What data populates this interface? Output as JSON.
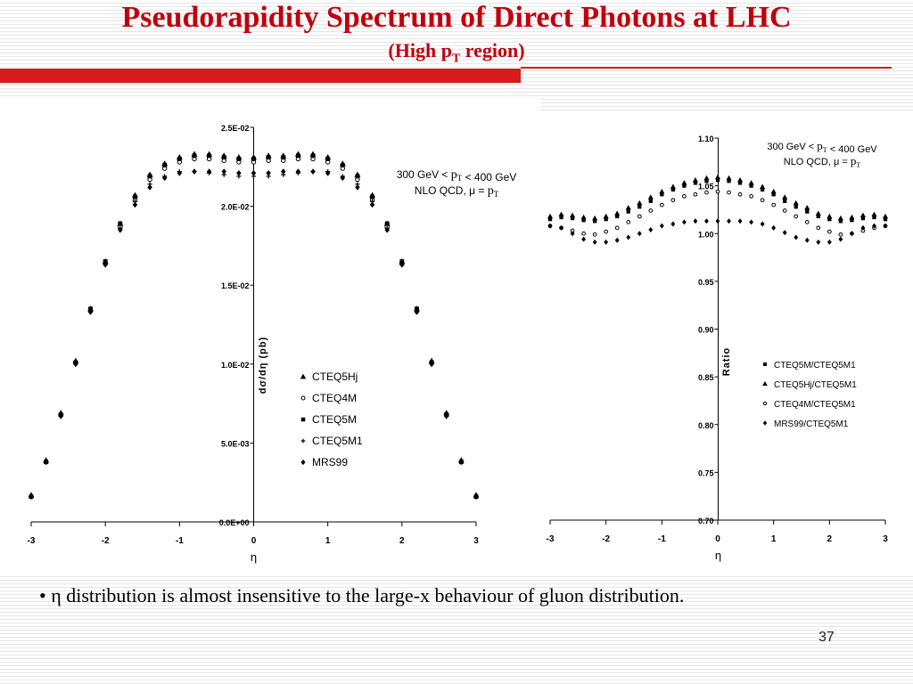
{
  "slide": {
    "title": "Pseudorapidity Spectrum of Direct Photons at LHC",
    "subtitle_prefix": "(High p",
    "subtitle_sub": "T",
    "subtitle_suffix": " region)",
    "bullet_mark": "•",
    "bullet_text": "η distribution is almost insensitive to the large-x behaviour of gluon distribution.",
    "page_number": "37"
  },
  "colors": {
    "title": "#c0000c",
    "bar": "#d61b1b"
  },
  "chart_data": [
    {
      "type": "scatter",
      "xlabel": "η",
      "ylabel": "dσ/dη (pb)",
      "xlim": [
        -3,
        3
      ],
      "ylim": [
        0,
        0.025
      ],
      "xticks": [
        -3,
        -2,
        -1,
        0,
        1,
        2,
        3
      ],
      "xtick_labels": [
        "-3",
        "-2",
        "-1",
        "0",
        "1",
        "2",
        "3"
      ],
      "yticks": [
        0,
        0.005,
        0.01,
        0.015,
        0.02,
        0.025
      ],
      "ytick_labels": [
        "0.0E+00",
        "5.0E-03",
        "1.0E-02",
        "1.5E-02",
        "2.0E-02",
        "2.5E-02"
      ],
      "annotation_line1": "300 GeV < p_T < 400 GeV",
      "annotation_line2": "NLO QCD, μ = p_T",
      "legend_position": "center-right",
      "x": [
        -3.0,
        -2.8,
        -2.6,
        -2.4,
        -2.2,
        -2.0,
        -1.8,
        -1.6,
        -1.4,
        -1.2,
        -1.0,
        -0.8,
        -0.6,
        -0.4,
        -0.2,
        0.0,
        0.2,
        0.4,
        0.6,
        0.8,
        1.0,
        1.2,
        1.4,
        1.6,
        1.8,
        2.0,
        2.2,
        2.4,
        2.6,
        2.8,
        3.0
      ],
      "series": [
        {
          "name": "CTEQ5Hj",
          "marker": "triangle",
          "values": [
            0.0017,
            0.0039,
            0.0069,
            0.0102,
            0.0135,
            0.0165,
            0.0189,
            0.0207,
            0.022,
            0.0227,
            0.0231,
            0.0233,
            0.0233,
            0.0232,
            0.0231,
            0.0231,
            0.0232,
            0.0232,
            0.0233,
            0.0233,
            0.0231,
            0.0227,
            0.022,
            0.0207,
            0.0189,
            0.0165,
            0.0135,
            0.0102,
            0.0069,
            0.0039,
            0.0017
          ]
        },
        {
          "name": "CTEQ4M",
          "marker": "circle",
          "values": [
            0.0016,
            0.0038,
            0.0068,
            0.0101,
            0.0134,
            0.0164,
            0.0187,
            0.0204,
            0.0217,
            0.0224,
            0.0228,
            0.023,
            0.023,
            0.0229,
            0.0228,
            0.0228,
            0.0229,
            0.0229,
            0.023,
            0.023,
            0.0228,
            0.0224,
            0.0217,
            0.0204,
            0.0187,
            0.0164,
            0.0134,
            0.0101,
            0.0068,
            0.0038,
            0.0016
          ]
        },
        {
          "name": "CTEQ5M",
          "marker": "square",
          "values": [
            0.0016,
            0.0038,
            0.0068,
            0.0101,
            0.0135,
            0.0165,
            0.0189,
            0.0206,
            0.0219,
            0.0226,
            0.023,
            0.0232,
            0.0232,
            0.0231,
            0.023,
            0.023,
            0.0231,
            0.0231,
            0.0232,
            0.0232,
            0.023,
            0.0226,
            0.0219,
            0.0206,
            0.0189,
            0.0165,
            0.0135,
            0.0101,
            0.0068,
            0.0038,
            0.0016
          ]
        },
        {
          "name": "CTEQ5M1",
          "marker": "plus",
          "values": [
            0.0016,
            0.0038,
            0.0067,
            0.01,
            0.0133,
            0.0163,
            0.0186,
            0.0203,
            0.0214,
            0.0219,
            0.0222,
            0.0222,
            0.0221,
            0.022,
            0.0219,
            0.0219,
            0.0219,
            0.022,
            0.0221,
            0.0222,
            0.0222,
            0.0219,
            0.0214,
            0.0203,
            0.0186,
            0.0163,
            0.0133,
            0.01,
            0.0067,
            0.0038,
            0.0016
          ]
        },
        {
          "name": "MRS99",
          "marker": "diamond",
          "values": [
            0.0016,
            0.0038,
            0.0067,
            0.01,
            0.0133,
            0.0163,
            0.0185,
            0.0201,
            0.0212,
            0.0218,
            0.0221,
            0.0222,
            0.0222,
            0.0222,
            0.0221,
            0.0221,
            0.0221,
            0.0222,
            0.0222,
            0.0222,
            0.0221,
            0.0218,
            0.0212,
            0.0201,
            0.0185,
            0.0163,
            0.0133,
            0.01,
            0.0067,
            0.0038,
            0.0016
          ]
        }
      ]
    },
    {
      "type": "scatter",
      "xlabel": "η",
      "ylabel": "Ratio",
      "xlim": [
        -3,
        3
      ],
      "ylim": [
        0.7,
        1.1
      ],
      "xticks": [
        -3,
        -2,
        -1,
        0,
        1,
        2,
        3
      ],
      "xtick_labels": [
        "-3",
        "-2",
        "-1",
        "0",
        "1",
        "2",
        "3"
      ],
      "yticks": [
        0.7,
        0.75,
        0.8,
        0.85,
        0.9,
        0.95,
        1.0,
        1.05,
        1.1
      ],
      "ytick_labels": [
        "0.70",
        "0.75",
        "0.80",
        "0.85",
        "0.90",
        "0.95",
        "1.00",
        "1.05",
        "1.10"
      ],
      "annotation_line1": "300 GeV < p_T < 400 GeV",
      "annotation_line2": "NLO QCD, μ = p_T",
      "legend_position": "center-right",
      "x": [
        -3.0,
        -2.8,
        -2.6,
        -2.4,
        -2.2,
        -2.0,
        -1.8,
        -1.6,
        -1.4,
        -1.2,
        -1.0,
        -0.8,
        -0.6,
        -0.4,
        -0.2,
        0.0,
        0.2,
        0.4,
        0.6,
        0.8,
        1.0,
        1.2,
        1.4,
        1.6,
        1.8,
        2.0,
        2.2,
        2.4,
        2.6,
        2.8,
        3.0
      ],
      "series": [
        {
          "name": "CTEQ5M/CTEQ5M1",
          "marker": "square",
          "values": [
            1.015,
            1.017,
            1.016,
            1.014,
            1.013,
            1.015,
            1.018,
            1.023,
            1.028,
            1.034,
            1.041,
            1.046,
            1.05,
            1.053,
            1.055,
            1.056,
            1.055,
            1.053,
            1.05,
            1.046,
            1.041,
            1.034,
            1.028,
            1.023,
            1.018,
            1.015,
            1.013,
            1.014,
            1.016,
            1.017,
            1.015
          ]
        },
        {
          "name": "CTEQ5Hj/CTEQ5M1",
          "marker": "triangle",
          "values": [
            1.018,
            1.02,
            1.019,
            1.017,
            1.016,
            1.018,
            1.021,
            1.027,
            1.032,
            1.038,
            1.044,
            1.049,
            1.053,
            1.056,
            1.058,
            1.059,
            1.058,
            1.056,
            1.053,
            1.049,
            1.044,
            1.038,
            1.032,
            1.027,
            1.021,
            1.018,
            1.016,
            1.017,
            1.019,
            1.02,
            1.018
          ]
        },
        {
          "name": "CTEQ4M/CTEQ5M1",
          "marker": "circle",
          "values": [
            1.008,
            1.006,
            1.003,
            1.0,
            0.999,
            1.002,
            1.006,
            1.012,
            1.018,
            1.024,
            1.03,
            1.035,
            1.039,
            1.041,
            1.043,
            1.044,
            1.043,
            1.041,
            1.039,
            1.035,
            1.03,
            1.024,
            1.018,
            1.012,
            1.006,
            1.002,
            0.999,
            1.0,
            1.003,
            1.006,
            1.008
          ]
        },
        {
          "name": "MRS99/CTEQ5M1",
          "marker": "diamond",
          "values": [
            1.008,
            1.006,
            1.0,
            0.994,
            0.991,
            0.991,
            0.993,
            0.996,
            1.0,
            1.004,
            1.008,
            1.01,
            1.012,
            1.013,
            1.013,
            1.013,
            1.013,
            1.013,
            1.012,
            1.01,
            1.006,
            1.001,
            0.996,
            0.993,
            0.991,
            0.991,
            0.994,
            1.0,
            1.006,
            1.008,
            1.008
          ]
        }
      ]
    }
  ]
}
